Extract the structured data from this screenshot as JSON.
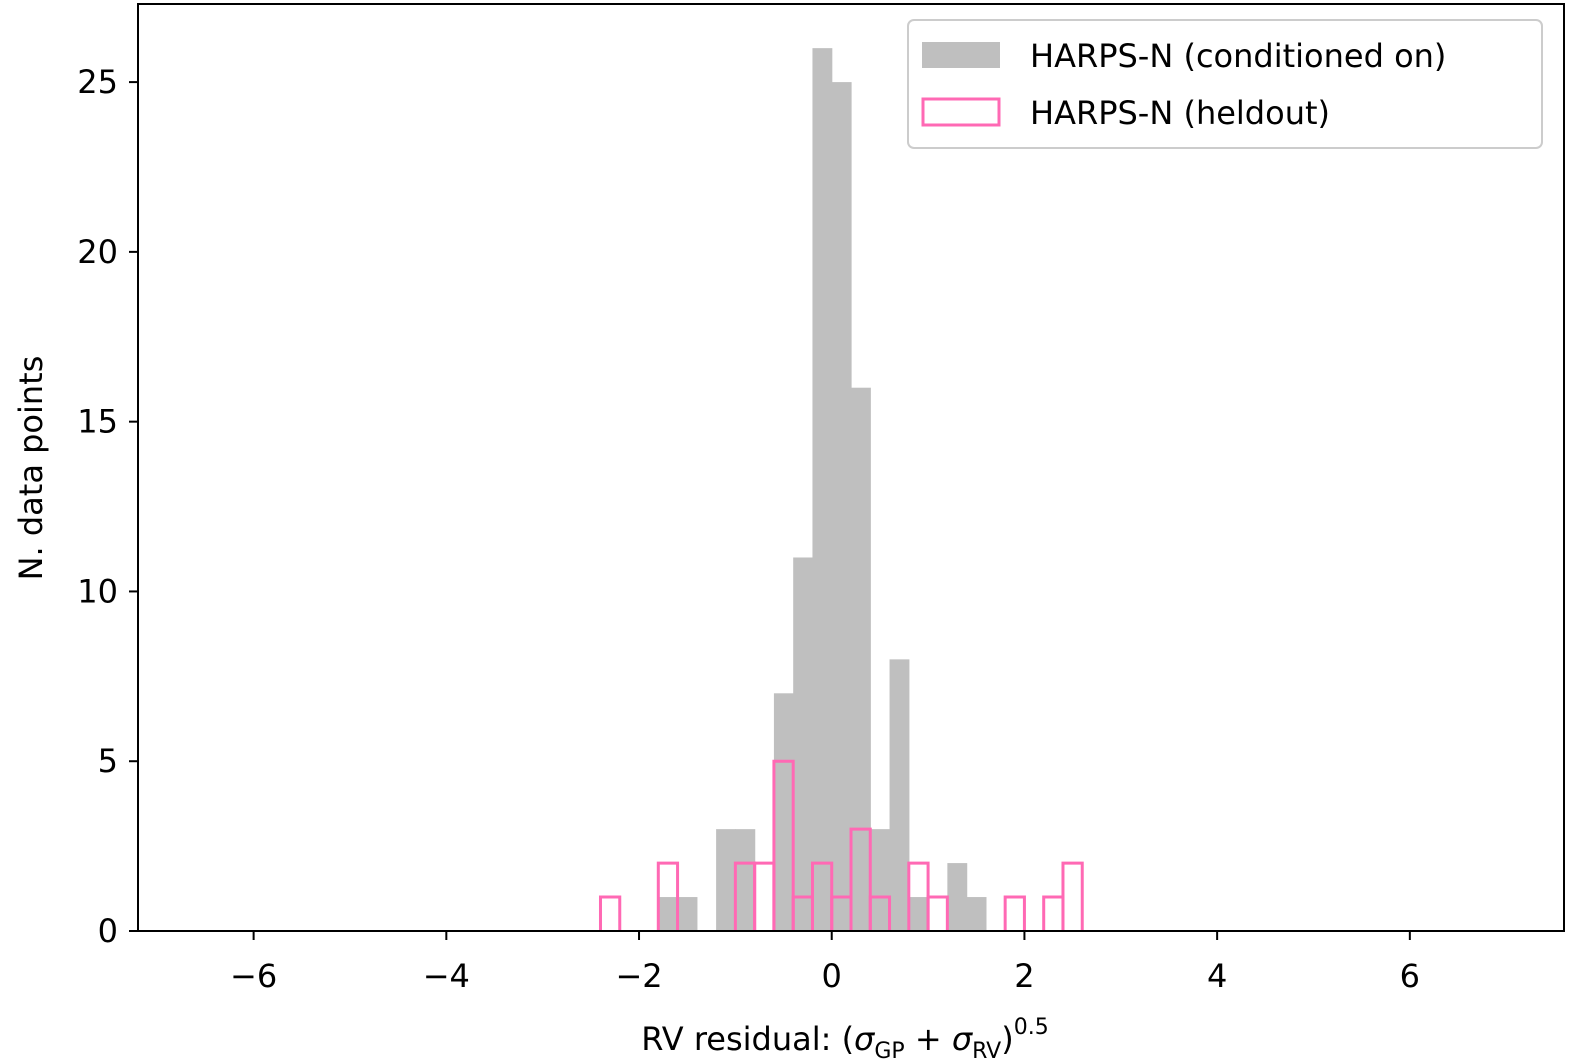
{
  "chart_data": {
    "type": "histogram",
    "title": "",
    "xlabel_main": "RV residual: (",
    "xlabel_sigma": "σ",
    "xlabel_sub_gp": "GP",
    "xlabel_plus": " + ",
    "xlabel_sub_rv": "RV",
    "xlabel_close": ")",
    "xlabel_exp": "0.5",
    "ylabel": "N. data points",
    "xlim": [
      -7.2,
      7.6
    ],
    "ylim": [
      0,
      27.3
    ],
    "xticks": [
      -6,
      -4,
      -2,
      0,
      2,
      4,
      6
    ],
    "xtick_labels": [
      "−6",
      "−4",
      "−2",
      "0",
      "2",
      "4",
      "6"
    ],
    "yticks": [
      0,
      5,
      10,
      15,
      20,
      25
    ],
    "ytick_labels": [
      "0",
      "5",
      "10",
      "15",
      "20",
      "25"
    ],
    "bin_width": 0.2,
    "series": [
      {
        "name": "HARPS-N (conditioned on)",
        "style": "filled",
        "color": "#bfbfbf",
        "bins": [
          {
            "x0": -1.8,
            "count": 1
          },
          {
            "x0": -1.6,
            "count": 1
          },
          {
            "x0": -1.2,
            "count": 3
          },
          {
            "x0": -1.0,
            "count": 3
          },
          {
            "x0": -0.6,
            "count": 7
          },
          {
            "x0": -0.4,
            "count": 11
          },
          {
            "x0": -0.2,
            "count": 26
          },
          {
            "x0": 0.0,
            "count": 25
          },
          {
            "x0": 0.2,
            "count": 16
          },
          {
            "x0": 0.4,
            "count": 3
          },
          {
            "x0": 0.6,
            "count": 8
          },
          {
            "x0": 0.8,
            "count": 1
          },
          {
            "x0": 1.2,
            "count": 2
          },
          {
            "x0": 1.4,
            "count": 1
          }
        ]
      },
      {
        "name": "HARPS-N (heldout)",
        "style": "step",
        "color": "#ff69b4",
        "bins": [
          {
            "x0": -2.4,
            "count": 1
          },
          {
            "x0": -1.8,
            "count": 2
          },
          {
            "x0": -1.0,
            "count": 2
          },
          {
            "x0": -0.8,
            "count": 2
          },
          {
            "x0": -0.6,
            "count": 5
          },
          {
            "x0": -0.4,
            "count": 1
          },
          {
            "x0": -0.2,
            "count": 2
          },
          {
            "x0": 0.0,
            "count": 1
          },
          {
            "x0": 0.2,
            "count": 3
          },
          {
            "x0": 0.4,
            "count": 1
          },
          {
            "x0": 0.8,
            "count": 2
          },
          {
            "x0": 1.0,
            "count": 1
          },
          {
            "x0": 1.8,
            "count": 1
          },
          {
            "x0": 2.2,
            "count": 1
          },
          {
            "x0": 2.4,
            "count": 2
          }
        ]
      }
    ],
    "legend_position": "top-right"
  }
}
